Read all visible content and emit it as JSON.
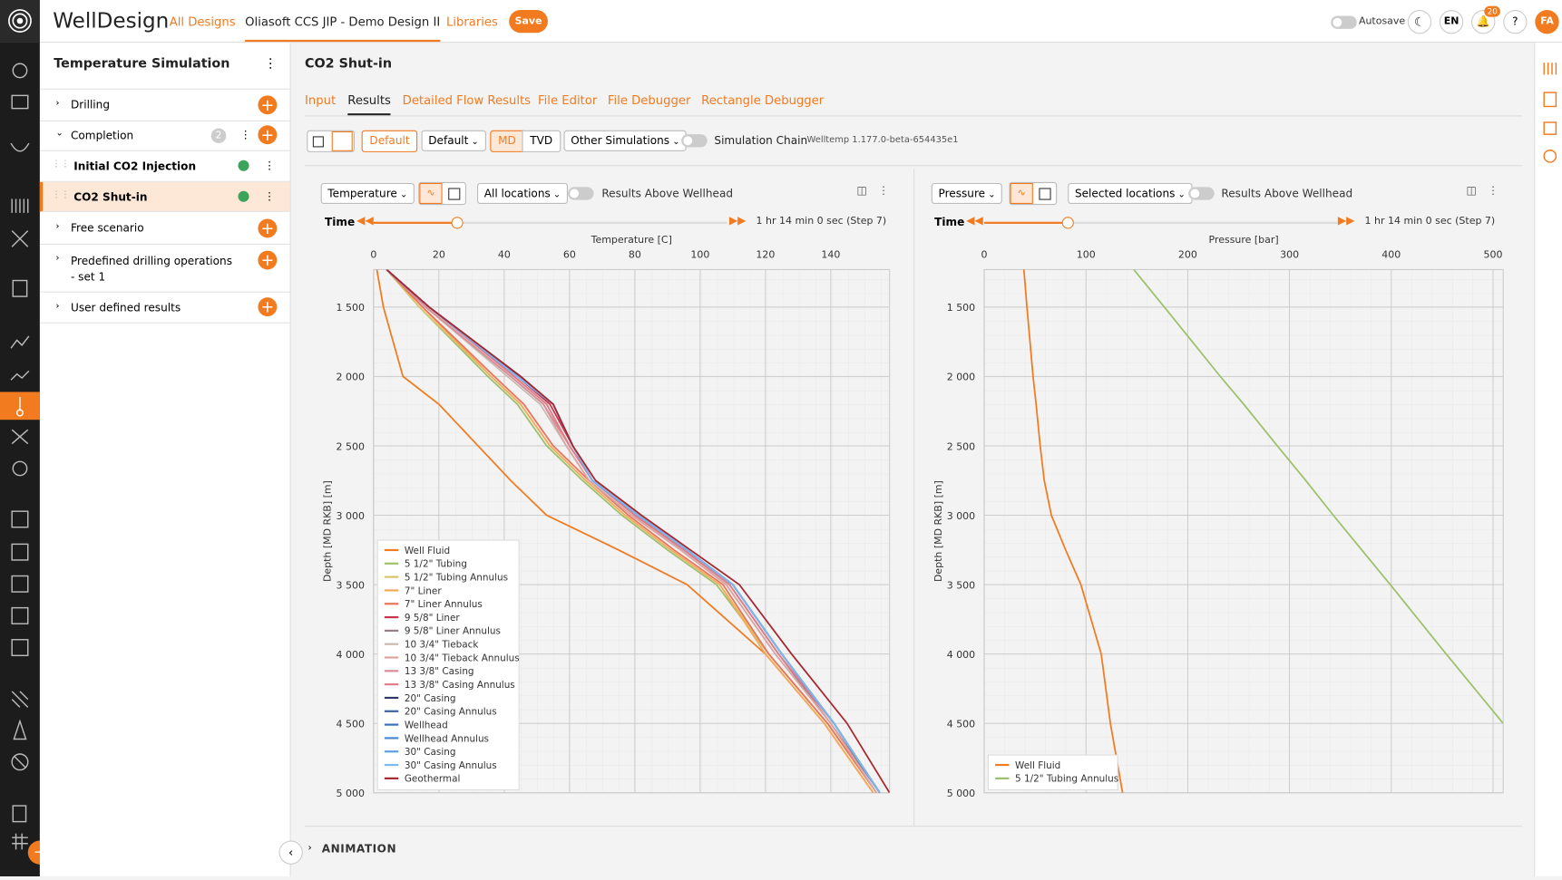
{
  "header": {
    "brand": "WellDesign",
    "nav": [
      "All Designs",
      "Oliasoft CCS JIP - Demo Design II",
      "Libraries"
    ],
    "save": "Save",
    "autosave": "Autosave",
    "lang": "EN",
    "notifications": "20",
    "help": "?",
    "user": "FA"
  },
  "sidebar": {
    "title": "Temperature Simulation",
    "items": [
      {
        "label": "Drilling"
      },
      {
        "label": "Completion",
        "badge": "2"
      },
      {
        "label": "Initial CO2 Injection"
      },
      {
        "label": "CO2 Shut-in"
      },
      {
        "label": "Free scenario"
      },
      {
        "label": "Predefined drilling operations - set 1"
      },
      {
        "label": "User defined results"
      }
    ]
  },
  "page": {
    "title": "CO2 Shut-in",
    "tabs": [
      "Input",
      "Results",
      "Detailed Flow Results",
      "File Editor",
      "File Debugger",
      "Rectangle Debugger"
    ],
    "toolbar": {
      "default_button": "Default",
      "default_select": "Default",
      "md": "MD",
      "tvd": "TVD",
      "other": "Other Simulations",
      "chain": "Simulation Chain",
      "version": "Welltemp 1.177.0-beta-654435e1"
    },
    "animation": "ANIMATION"
  },
  "chart_data": [
    {
      "type": "line",
      "variable": "Temperature",
      "locations": "All locations",
      "above_wellhead": "Results Above Wellhead",
      "time_label": "Time",
      "time": "1 hr 14 min 0 sec (Step 7)",
      "xlabel": "Temperature [C]",
      "ylabel": "Depth [MD RKB] [m]",
      "y_inverted": true,
      "grid": true,
      "legend": "lower left",
      "y": [
        1230,
        1500,
        2000,
        2200,
        2500,
        2750,
        3000,
        3250,
        3500,
        4000,
        4500,
        5000
      ],
      "xlim": [
        0,
        158
      ],
      "xticks": [
        0,
        20,
        40,
        60,
        80,
        100,
        120,
        140
      ],
      "ylim": [
        1230,
        5000
      ],
      "yticks": [
        {
          "value": 1500,
          "label": "1 500"
        },
        {
          "value": 2000,
          "label": "2 000"
        },
        {
          "value": 2500,
          "label": "2 500"
        },
        {
          "value": 3000,
          "label": "3 000"
        },
        {
          "value": 3500,
          "label": "3 500"
        },
        {
          "value": 4000,
          "label": "4 000"
        },
        {
          "value": 4500,
          "label": "4 500"
        },
        {
          "value": 5000,
          "label": "5 000"
        }
      ],
      "series": [
        {
          "name": "Well Fluid",
          "color": "#f27a1f",
          "values": [
            1,
            3,
            9,
            20,
            32,
            42,
            53,
            75,
            96,
            120,
            138,
            153
          ]
        },
        {
          "name": "5 1/2\" Tubing",
          "color": "#9cc06c",
          "values": [
            4,
            14,
            35,
            44,
            53,
            64,
            76,
            90,
            105,
            121,
            139,
            154
          ]
        },
        {
          "name": "5 1/2\" Tubing Annulus",
          "color": "#d9c46c",
          "values": [
            4,
            14,
            36,
            45,
            54,
            65,
            77,
            91,
            106,
            121,
            139,
            154
          ]
        },
        {
          "name": "7\" Liner",
          "color": "#f4aa5c",
          "values": [
            4,
            15,
            36,
            45,
            54,
            65,
            77,
            91,
            106,
            120,
            138,
            153
          ]
        },
        {
          "name": "7\" Liner Annulus",
          "color": "#ea745b",
          "values": [
            4,
            15,
            37,
            46,
            55,
            66,
            78,
            92,
            107,
            121,
            139,
            154
          ]
        },
        {
          "name": "9 5/8\" Liner",
          "color": "#c8334a",
          "values": [
            4,
            17,
            44,
            54,
            61,
            67,
            81,
            96,
            110,
            125,
            141,
            155
          ]
        },
        {
          "name": "9 5/8\" Liner Annulus",
          "color": "#9a7b8c",
          "values": [
            4,
            17,
            43,
            53,
            60,
            67,
            80,
            95,
            109,
            124,
            140,
            155
          ]
        },
        {
          "name": "10 3/4\" Tieback",
          "color": "#c9bab1",
          "values": [
            4,
            16,
            41,
            51,
            59,
            66,
            79,
            94,
            108,
            123,
            140,
            154
          ]
        },
        {
          "name": "10 3/4\" Tieback Annulus",
          "color": "#dba4a1",
          "values": [
            4,
            16,
            42,
            52,
            59,
            66,
            79,
            94,
            108,
            123,
            140,
            154
          ]
        },
        {
          "name": "13 3/8\" Casing",
          "color": "#d98b96",
          "values": [
            4,
            16,
            42,
            52,
            60,
            67,
            80,
            95,
            109,
            124,
            141,
            155
          ]
        },
        {
          "name": "13 3/8\" Casing Annulus",
          "color": "#e07d8a",
          "values": [
            4,
            17,
            43,
            53,
            60,
            67,
            80,
            95,
            109,
            124,
            141,
            155
          ]
        },
        {
          "name": "20\" Casing",
          "color": "#2d3a66",
          "values": [
            4,
            17,
            45,
            55,
            61,
            67,
            81,
            96,
            110,
            125,
            141,
            155
          ]
        },
        {
          "name": "20\" Casing Annulus",
          "color": "#3f5fa0",
          "values": [
            4,
            17,
            45,
            55,
            61,
            67,
            81,
            96,
            110,
            125,
            141,
            155
          ]
        },
        {
          "name": "Wellhead",
          "color": "#3a6fc0",
          "values": [
            4,
            17,
            44,
            55,
            61,
            67,
            81,
            96,
            110,
            125,
            141,
            155
          ]
        },
        {
          "name": "Wellhead Annulus",
          "color": "#4a88d0",
          "values": [
            4,
            17,
            44,
            55,
            61,
            67,
            81,
            96,
            110,
            125,
            141,
            155
          ]
        },
        {
          "name": "30\" Casing",
          "color": "#5aa0e0",
          "values": [
            4,
            17,
            44,
            55,
            61,
            67,
            81,
            96,
            110,
            125,
            141,
            155
          ]
        },
        {
          "name": "30\" Casing Annulus",
          "color": "#7cb8ef",
          "values": [
            4,
            17,
            44,
            55,
            61,
            67,
            81,
            96,
            110,
            125,
            141,
            155
          ]
        },
        {
          "name": "Geothermal",
          "color": "#a8262e",
          "values": [
            4,
            17,
            45,
            55,
            61,
            68,
            82,
            97,
            112,
            128,
            145,
            158
          ]
        }
      ]
    },
    {
      "type": "line",
      "variable": "Pressure",
      "locations": "Selected locations",
      "above_wellhead": "Results Above Wellhead",
      "time_label": "Time",
      "time": "1 hr 14 min 0 sec (Step 7)",
      "xlabel": "Pressure [bar]",
      "ylabel": "Depth [MD RKB] [m]",
      "y_inverted": true,
      "grid": true,
      "legend": "lower left",
      "y": [
        1230,
        1500,
        2000,
        2200,
        2500,
        2750,
        3000,
        3250,
        3500,
        4000,
        4500,
        5000
      ],
      "xlim": [
        0,
        510
      ],
      "xticks": [
        0,
        100,
        200,
        300,
        400,
        500
      ],
      "ylim": [
        1230,
        5000
      ],
      "yticks": [
        {
          "value": 1500,
          "label": "1 500"
        },
        {
          "value": 2000,
          "label": "2 000"
        },
        {
          "value": 2500,
          "label": "2 500"
        },
        {
          "value": 3000,
          "label": "3 000"
        },
        {
          "value": 3500,
          "label": "3 500"
        },
        {
          "value": 4000,
          "label": "4 000"
        },
        {
          "value": 4500,
          "label": "4 500"
        },
        {
          "value": 5000,
          "label": "5 000"
        }
      ],
      "series": [
        {
          "name": "Well Fluid",
          "color": "#f27a1f",
          "values": [
            39,
            42,
            48,
            51,
            55,
            59,
            66,
            80,
            95,
            115,
            124,
            136
          ]
        },
        {
          "name": "5 1/2\" Tubing Annulus",
          "color": "#9cc06c",
          "values": [
            147,
            177,
            232,
            255,
            288,
            316,
            343,
            371,
            399,
            454,
            510,
            null
          ]
        }
      ]
    }
  ]
}
